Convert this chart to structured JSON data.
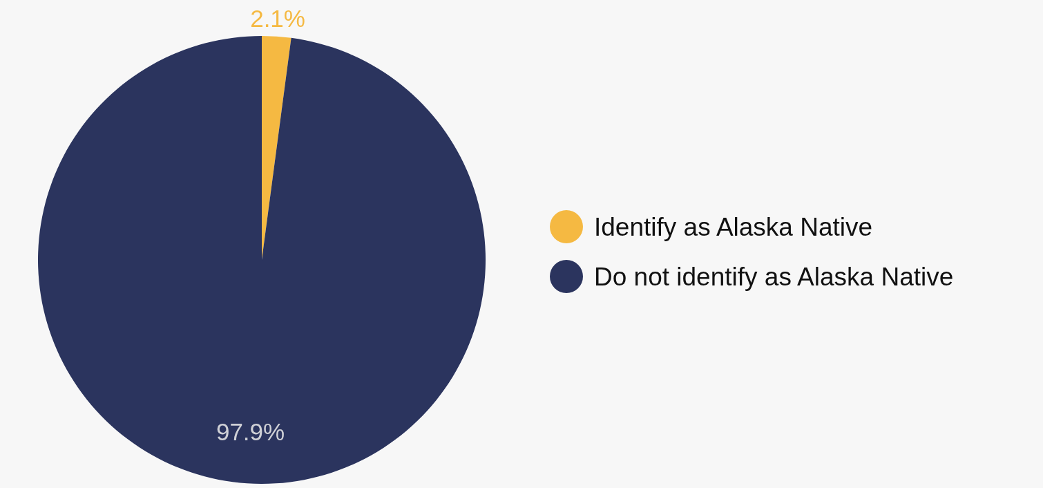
{
  "chart_data": {
    "type": "pie",
    "categories": [
      "Identify as Alaska Native",
      "Do not identify as Alaska Native"
    ],
    "values": [
      2.1,
      97.9
    ],
    "colors": [
      "#f5b942",
      "#2b345e"
    ],
    "value_labels": [
      "2.1%",
      "97.9%"
    ],
    "legend": "right"
  }
}
